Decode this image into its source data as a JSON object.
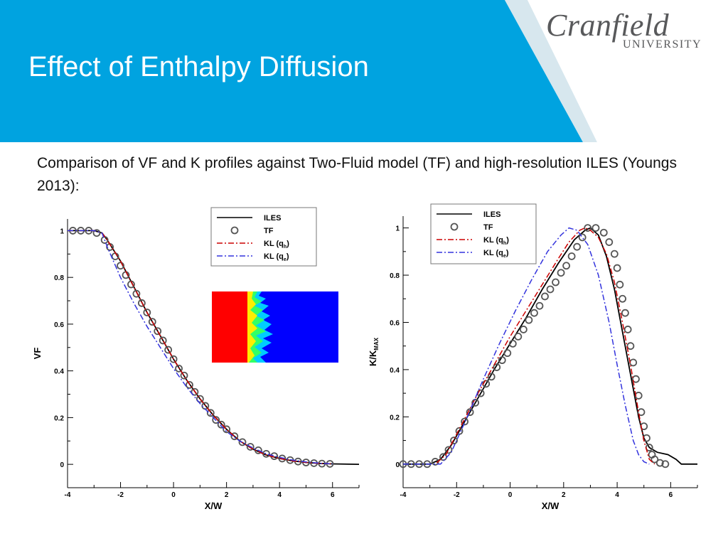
{
  "header": {
    "title": "Effect of Enthalpy Diffusion",
    "logo_name": "Cranfield",
    "logo_sub": "UNIVERSITY",
    "colors": {
      "band": "#00a3e0",
      "white": "#ffffff",
      "logo_text": "#58595b"
    }
  },
  "intro": {
    "text": "Comparison of VF and K profiles against Two-Fluid model (TF) and high-resolution ILES (Youngs 2013):"
  },
  "inset_image": {
    "description_icon": "turbulent-mixing-layer-image",
    "colors": {
      "left": "#ff0000",
      "right": "#0000ff",
      "mix": [
        "#ffee00",
        "#33ff66",
        "#00ccff"
      ]
    }
  },
  "chart_data": [
    {
      "type": "line",
      "xlabel": "X/W",
      "ylabel": "VF",
      "xlim": [
        -4,
        7
      ],
      "ylim": [
        -0.1,
        1.05
      ],
      "x_ticks": [
        -4,
        -2,
        0,
        2,
        4,
        6
      ],
      "y_ticks": [
        0,
        0.2,
        0.4,
        0.6,
        0.8,
        1
      ],
      "x_tick_labels": [
        "-4",
        "-2",
        "0",
        "2",
        "4",
        "6"
      ],
      "y_tick_labels": [
        "0",
        "0.2",
        "0.4",
        "0.6",
        "0.8",
        "1"
      ],
      "legend_position": "top-right",
      "grid": false,
      "series": [
        {
          "name": "ILES",
          "style": "solid",
          "marker": "none",
          "color": "#000000",
          "x": [
            -4,
            -3,
            -2.7,
            -2.5,
            -2.0,
            -1.5,
            -1.0,
            -0.5,
            0,
            0.5,
            1.0,
            1.5,
            2.0,
            2.5,
            3.0,
            3.5,
            4.0,
            4.5,
            5.0,
            5.5,
            6.0,
            7.0
          ],
          "y": [
            1,
            1,
            0.99,
            0.96,
            0.87,
            0.76,
            0.65,
            0.55,
            0.45,
            0.36,
            0.28,
            0.21,
            0.15,
            0.1,
            0.065,
            0.04,
            0.025,
            0.015,
            0.008,
            0.004,
            0.002,
            0
          ]
        },
        {
          "name": "TF",
          "style": "circles",
          "marker": "circle",
          "color": "#555555",
          "x": [
            -3.8,
            -3.5,
            -3.2,
            -2.9,
            -2.6,
            -2.4,
            -2.2,
            -2.0,
            -1.8,
            -1.6,
            -1.4,
            -1.2,
            -1.0,
            -0.8,
            -0.6,
            -0.4,
            -0.2,
            0.0,
            0.2,
            0.4,
            0.6,
            0.8,
            1.0,
            1.2,
            1.4,
            1.6,
            1.8,
            2.0,
            2.3,
            2.6,
            2.9,
            3.2,
            3.5,
            3.8,
            4.1,
            4.4,
            4.7,
            5.0,
            5.3,
            5.6,
            5.9
          ],
          "y": [
            1.0,
            1.0,
            1.0,
            0.99,
            0.96,
            0.93,
            0.89,
            0.85,
            0.81,
            0.77,
            0.73,
            0.69,
            0.65,
            0.61,
            0.57,
            0.53,
            0.49,
            0.45,
            0.41,
            0.38,
            0.34,
            0.31,
            0.28,
            0.25,
            0.22,
            0.19,
            0.17,
            0.15,
            0.12,
            0.095,
            0.075,
            0.06,
            0.045,
            0.035,
            0.025,
            0.018,
            0.012,
            0.008,
            0.005,
            0.003,
            0.002
          ]
        },
        {
          "name": "KL (q",
          "sub": "h",
          "style": "dashdot",
          "marker": "none",
          "color": "#cc0000",
          "x": [
            -4,
            -3,
            -2.7,
            -2.5,
            -2.0,
            -1.5,
            -1.0,
            -0.5,
            0,
            0.5,
            1.0,
            1.5,
            2.0,
            2.5,
            3.0,
            3.5,
            4.0,
            4.5,
            5.0,
            5.5,
            6.0
          ],
          "y": [
            1,
            1,
            0.99,
            0.96,
            0.87,
            0.76,
            0.65,
            0.55,
            0.45,
            0.36,
            0.28,
            0.21,
            0.15,
            0.1,
            0.065,
            0.04,
            0.025,
            0.015,
            0.008,
            0.004,
            0.002
          ]
        },
        {
          "name": "KL (q",
          "sub": "e",
          "style": "dashdot",
          "marker": "none",
          "color": "#3333dd",
          "x": [
            -4,
            -3,
            -2.7,
            -2.5,
            -2.0,
            -1.5,
            -1.0,
            -0.5,
            0,
            0.5,
            1.0,
            1.5,
            2.0,
            2.5,
            3.0,
            3.5,
            4.0,
            4.5,
            5.0,
            5.5,
            6.0
          ],
          "y": [
            1,
            1,
            0.99,
            0.93,
            0.8,
            0.69,
            0.59,
            0.5,
            0.41,
            0.33,
            0.26,
            0.2,
            0.14,
            0.1,
            0.07,
            0.045,
            0.03,
            0.018,
            0.01,
            0.005,
            0.002
          ]
        }
      ]
    },
    {
      "type": "line",
      "xlabel": "X/W",
      "ylabel": "K/K",
      "ylabel_sub": "MAX",
      "xlim": [
        -4,
        7
      ],
      "ylim": [
        -0.1,
        1.05
      ],
      "x_ticks": [
        -4,
        -2,
        0,
        2,
        4,
        6
      ],
      "y_ticks": [
        0,
        0.2,
        0.4,
        0.6,
        0.8,
        1
      ],
      "x_tick_labels": [
        "-4",
        "-2",
        "0",
        "2",
        "4",
        "6"
      ],
      "y_tick_labels": [
        "0",
        "0.2",
        "0.4",
        "0.6",
        "0.8",
        "1"
      ],
      "legend_position": "top-left",
      "grid": false,
      "series": [
        {
          "name": "ILES",
          "style": "solid",
          "marker": "none",
          "color": "#000000",
          "x": [
            -4,
            -3,
            -2.6,
            -2.2,
            -1.8,
            -1.2,
            -0.6,
            0,
            0.6,
            1.2,
            1.8,
            2.4,
            2.8,
            3.0,
            3.3,
            3.6,
            3.9,
            4.2,
            4.5,
            4.8,
            5.0,
            5.2,
            5.5,
            5.9,
            6.2,
            6.4,
            7.0
          ],
          "y": [
            0,
            0,
            0.02,
            0.08,
            0.16,
            0.28,
            0.4,
            0.51,
            0.62,
            0.74,
            0.85,
            0.95,
            0.99,
            1.0,
            0.97,
            0.88,
            0.74,
            0.56,
            0.38,
            0.2,
            0.11,
            0.07,
            0.05,
            0.04,
            0.02,
            0,
            0
          ]
        },
        {
          "name": "TF",
          "style": "circles",
          "marker": "circle",
          "color": "#555555",
          "x": [
            -4,
            -3.7,
            -3.4,
            -3.1,
            -2.8,
            -2.5,
            -2.3,
            -2.1,
            -1.9,
            -1.7,
            -1.5,
            -1.3,
            -1.1,
            -0.9,
            -0.7,
            -0.5,
            -0.3,
            -0.1,
            0.1,
            0.3,
            0.5,
            0.7,
            0.9,
            1.1,
            1.3,
            1.5,
            1.7,
            1.9,
            2.1,
            2.3,
            2.5,
            2.7,
            2.9,
            3.2,
            3.5,
            3.7,
            3.9,
            4.0,
            4.1,
            4.2,
            4.3,
            4.4,
            4.5,
            4.6,
            4.7,
            4.8,
            4.9,
            5.0,
            5.1,
            5.2,
            5.3,
            5.4,
            5.6,
            5.8
          ],
          "y": [
            0,
            0,
            0,
            0,
            0.01,
            0.03,
            0.06,
            0.1,
            0.14,
            0.18,
            0.22,
            0.26,
            0.3,
            0.34,
            0.37,
            0.41,
            0.44,
            0.47,
            0.51,
            0.54,
            0.57,
            0.61,
            0.64,
            0.67,
            0.71,
            0.74,
            0.77,
            0.81,
            0.84,
            0.88,
            0.92,
            0.96,
            1.0,
            1.0,
            0.98,
            0.94,
            0.89,
            0.83,
            0.76,
            0.7,
            0.64,
            0.57,
            0.5,
            0.43,
            0.36,
            0.29,
            0.22,
            0.16,
            0.11,
            0.07,
            0.04,
            0.02,
            0.005,
            0
          ]
        },
        {
          "name": "KL (q",
          "sub": "h",
          "style": "dashdot",
          "marker": "none",
          "color": "#cc0000",
          "x": [
            -4,
            -2.8,
            -2.4,
            -1.8,
            -1.2,
            -0.6,
            0,
            0.6,
            1.2,
            1.8,
            2.2,
            2.6,
            2.8,
            3.0,
            3.3,
            3.6,
            3.9,
            4.2,
            4.5,
            4.8,
            5.0,
            5.2,
            5.4
          ],
          "y": [
            0,
            0,
            0.04,
            0.17,
            0.3,
            0.42,
            0.54,
            0.65,
            0.76,
            0.87,
            0.94,
            0.99,
            1.0,
            0.99,
            0.96,
            0.89,
            0.77,
            0.6,
            0.42,
            0.22,
            0.1,
            0.02,
            0
          ]
        },
        {
          "name": "KL (q",
          "sub": "e",
          "style": "dashdot",
          "marker": "none",
          "color": "#3333dd",
          "x": [
            -4,
            -2.6,
            -2.2,
            -1.6,
            -1.0,
            -0.4,
            0.2,
            0.8,
            1.4,
            1.9,
            2.2,
            2.5,
            2.9,
            3.3,
            3.7,
            4.0,
            4.3,
            4.6,
            4.8,
            5.0,
            5.2
          ],
          "y": [
            0,
            0,
            0.05,
            0.2,
            0.36,
            0.51,
            0.65,
            0.78,
            0.9,
            0.97,
            1.0,
            0.99,
            0.93,
            0.8,
            0.6,
            0.42,
            0.25,
            0.1,
            0.04,
            0.01,
            0
          ]
        }
      ]
    }
  ]
}
